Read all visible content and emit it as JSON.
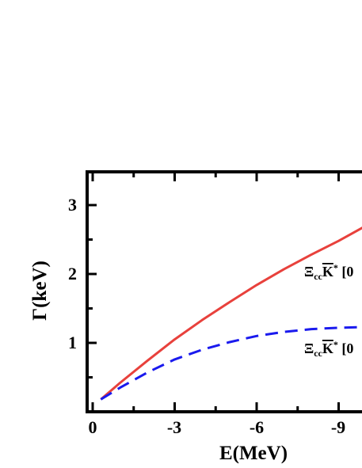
{
  "chart_data": {
    "type": "line",
    "xlabel": "E(MeV)",
    "ylabel": "Γ(keV)",
    "x_ticks": [
      "0",
      "-3",
      "-6",
      "-9"
    ],
    "y_ticks": [
      "1",
      "2",
      "3"
    ],
    "xlim": [
      -0.1,
      -10.0
    ],
    "ylim": [
      0.0,
      3.5
    ],
    "grid": false,
    "series": [
      {
        "color": "#e8413c",
        "dash": "solid",
        "x": [
          -0.3,
          -1.0,
          -2.0,
          -3.0,
          -4.0,
          -5.0,
          -6.0,
          -7.0,
          -8.0,
          -9.0,
          -10.0
        ],
        "y": [
          0.18,
          0.42,
          0.74,
          1.05,
          1.33,
          1.59,
          1.84,
          2.07,
          2.28,
          2.48,
          2.7
        ]
      },
      {
        "color": "#1a1aee",
        "dash": "dashed",
        "x": [
          -0.3,
          -1.0,
          -2.0,
          -3.0,
          -4.0,
          -5.0,
          -6.0,
          -7.0,
          -8.0,
          -9.0,
          -10.0
        ],
        "y": [
          0.18,
          0.35,
          0.57,
          0.76,
          0.9,
          1.01,
          1.1,
          1.16,
          1.2,
          1.22,
          1.23
        ]
      }
    ],
    "annotations": [
      {
        "main": "Ξ",
        "sub": "cc",
        "bar": "K",
        "sup": "*",
        "tail": " [0"
      },
      {
        "main": "Ξ",
        "sub": "cc",
        "bar": "K",
        "sup": "*",
        "tail": " [0"
      }
    ]
  }
}
